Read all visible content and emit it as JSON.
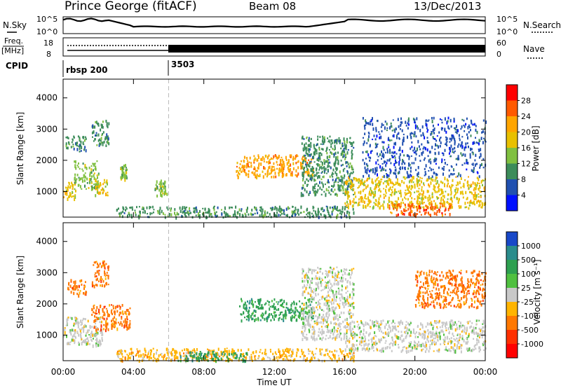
{
  "header": {
    "station": "Prince George (fitACF)",
    "beam": "Beam 08",
    "date": "13/Dec/2013"
  },
  "strip_panels": {
    "nsky_label": "N.Sky",
    "nsky_ticks": [
      "10^5",
      "10^0"
    ],
    "nsearch_label": "N.Search",
    "nsearch_ticks": [
      "10^5",
      "10^0"
    ],
    "freq_label": "Freq.",
    "freq_unit": "[MHz]",
    "freq_ticks": [
      "18",
      "8"
    ],
    "nave_label": "Nave",
    "nave_ticks": [
      "60",
      "0"
    ],
    "cpid_label": "CPID",
    "cpid_segments": [
      {
        "label": "rbsp 200",
        "start_hour": 0
      },
      {
        "label": "3503",
        "start_hour": 6
      }
    ]
  },
  "chart_data": [
    {
      "type": "heatmap",
      "name": "power",
      "ylabel": "Slant Range [km]",
      "xlabel": "",
      "xlim": [
        0,
        24
      ],
      "ylim": [
        180,
        4600
      ],
      "yticks": [
        1000,
        2000,
        3000,
        4000
      ],
      "colorbar": {
        "label": "Power [dB]",
        "ticks": [
          "28",
          "24",
          "20",
          "16",
          "12",
          "8",
          "4"
        ],
        "colors": [
          "#ff0000",
          "#ff5a00",
          "#ffa500",
          "#e8c000",
          "#80c040",
          "#3c8c5a",
          "#2050b0",
          "#0010ff"
        ]
      },
      "regions": [
        {
          "x": [
            0.0,
            0.7
          ],
          "y": [
            800,
            1400
          ],
          "level": 20
        },
        {
          "x": [
            0.6,
            2.0
          ],
          "y": [
            1100,
            2000
          ],
          "level": 16
        },
        {
          "x": [
            0.1,
            1.3
          ],
          "y": [
            2300,
            2800
          ],
          "level": 12
        },
        {
          "x": [
            1.6,
            2.6
          ],
          "y": [
            2500,
            3300
          ],
          "level": 12
        },
        {
          "x": [
            1.8,
            2.5
          ],
          "y": [
            900,
            1400
          ],
          "level": 18
        },
        {
          "x": [
            3.2,
            3.6
          ],
          "y": [
            1400,
            1900
          ],
          "level": 16
        },
        {
          "x": [
            5.2,
            5.9
          ],
          "y": [
            900,
            1400
          ],
          "level": 16
        },
        {
          "x": [
            3.0,
            16.5
          ],
          "y": [
            200,
            550
          ],
          "level": 12
        },
        {
          "x": [
            9.8,
            14.2
          ],
          "y": [
            1500,
            2200
          ],
          "level": 22
        },
        {
          "x": [
            13.5,
            16.5
          ],
          "y": [
            900,
            2800
          ],
          "level": 12
        },
        {
          "x": [
            16.0,
            24.0
          ],
          "y": [
            500,
            1500
          ],
          "level": 18
        },
        {
          "x": [
            18.5,
            22.0
          ],
          "y": [
            250,
            650
          ],
          "level": 28
        },
        {
          "x": [
            17.0,
            24.0
          ],
          "y": [
            1500,
            3400
          ],
          "level": 8
        }
      ]
    },
    {
      "type": "heatmap",
      "name": "velocity",
      "ylabel": "Slant Range [km]",
      "xlabel": "Time UT",
      "xlim": [
        0,
        24
      ],
      "ylim": [
        180,
        4600
      ],
      "xticks": [
        "00:00",
        "04:00",
        "08:00",
        "12:00",
        "16:00",
        "20:00",
        "00:00"
      ],
      "yticks": [
        1000,
        2000,
        3000,
        4000
      ],
      "colorbar": {
        "label": "Velocity [m s⁻¹]",
        "ticks": [
          "1000",
          "500",
          "100",
          "25",
          "-25",
          "-100",
          "-500",
          "-1000"
        ],
        "colors": [
          "#1848c8",
          "#2a8c8c",
          "#2ea050",
          "#50c040",
          "#c8c8c8",
          "#ffb400",
          "#ff7800",
          "#ff3000",
          "#ff0000"
        ]
      },
      "regions": [
        {
          "x": [
            0.0,
            2.2
          ],
          "y": [
            700,
            1600
          ],
          "v": 0
        },
        {
          "x": [
            0.2,
            1.3
          ],
          "y": [
            2300,
            2800
          ],
          "v": -300
        },
        {
          "x": [
            1.6,
            2.6
          ],
          "y": [
            2600,
            3400
          ],
          "v": -300
        },
        {
          "x": [
            1.6,
            3.8
          ],
          "y": [
            1200,
            2000
          ],
          "v": -300
        },
        {
          "x": [
            3.0,
            16.5
          ],
          "y": [
            200,
            600
          ],
          "v": -60
        },
        {
          "x": [
            6.5,
            10.5
          ],
          "y": [
            200,
            500
          ],
          "v": 150
        },
        {
          "x": [
            10.0,
            14.2
          ],
          "y": [
            1500,
            2200
          ],
          "v": 300
        },
        {
          "x": [
            13.5,
            16.5
          ],
          "y": [
            900,
            3200
          ],
          "v": 0
        },
        {
          "x": [
            16.0,
            24.0
          ],
          "y": [
            500,
            1500
          ],
          "v": 0
        },
        {
          "x": [
            20.0,
            24.0
          ],
          "y": [
            1900,
            3100
          ],
          "v": -300
        }
      ]
    }
  ]
}
